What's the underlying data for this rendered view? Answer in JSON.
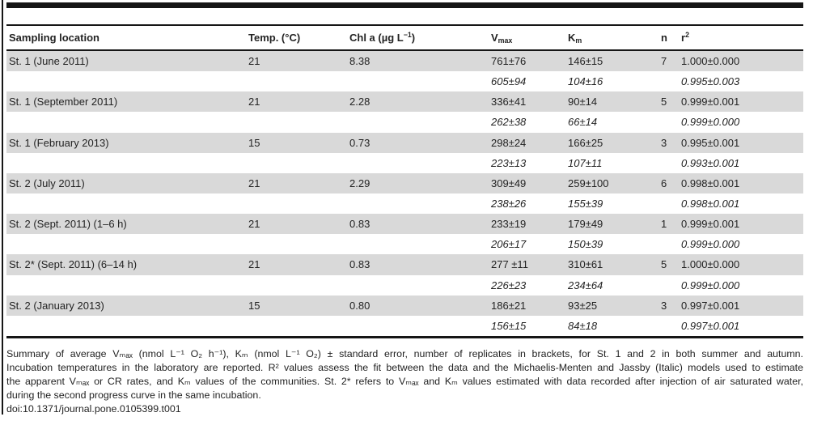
{
  "table": {
    "columns": [
      {
        "id": "sampling-location",
        "text": "Sampling location"
      },
      {
        "id": "temp",
        "text": "Temp. (°C)"
      },
      {
        "id": "chl-a",
        "text": "Chl a (µg L",
        "sup": "−1",
        "after": ")"
      },
      {
        "id": "vmax",
        "text": "V",
        "sub": "max"
      },
      {
        "id": "km",
        "text": "K",
        "sub": "m"
      },
      {
        "id": "n",
        "text": "n"
      },
      {
        "id": "r2",
        "text": "r",
        "sup": "2"
      }
    ],
    "rows": [
      {
        "shaded": true,
        "italic": false,
        "cells": [
          "St. 1 (June 2011)",
          "21",
          "8.38",
          "761±76",
          "146±15",
          "7",
          "1.000±0.000"
        ]
      },
      {
        "shaded": false,
        "italic": true,
        "cells": [
          "",
          "",
          "",
          "605±94",
          "104±16",
          "",
          "0.995±0.003"
        ]
      },
      {
        "shaded": true,
        "italic": false,
        "cells": [
          "St. 1 (September 2011)",
          "21",
          "2.28",
          "336±41",
          "90±14",
          "5",
          "0.999±0.001"
        ]
      },
      {
        "shaded": false,
        "italic": true,
        "cells": [
          "",
          "",
          "",
          "262±38",
          "66±14",
          "",
          "0.999±0.000"
        ]
      },
      {
        "shaded": true,
        "italic": false,
        "cells": [
          "St. 1 (February 2013)",
          "15",
          "0.73",
          "298±24",
          "166±25",
          "3",
          "0.995±0.001"
        ]
      },
      {
        "shaded": false,
        "italic": true,
        "cells": [
          "",
          "",
          "",
          "223±13",
          "107±11",
          "",
          "0.993±0.001"
        ]
      },
      {
        "shaded": true,
        "italic": false,
        "cells": [
          "St. 2 (July 2011)",
          "21",
          "2.29",
          "309±49",
          "259±100",
          "6",
          "0.998±0.001"
        ]
      },
      {
        "shaded": false,
        "italic": true,
        "cells": [
          "",
          "",
          "",
          "238±26",
          "155±39",
          "",
          "0.998±0.001"
        ]
      },
      {
        "shaded": true,
        "italic": false,
        "cells": [
          "St. 2 (Sept. 2011) (1–6 h)",
          "21",
          "0.83",
          "233±19",
          "179±49",
          "1",
          "0.999±0.001"
        ]
      },
      {
        "shaded": false,
        "italic": true,
        "cells": [
          "",
          "",
          "",
          "206±17",
          "150±39",
          "",
          "0.999±0.000"
        ]
      },
      {
        "shaded": true,
        "italic": false,
        "cells": [
          "St. 2* (Sept. 2011) (6–14 h)",
          "21",
          "0.83",
          "277 ±11",
          "310±61",
          "5",
          "1.000±0.000"
        ]
      },
      {
        "shaded": false,
        "italic": true,
        "cells": [
          "",
          "",
          "",
          "226±23",
          "234±64",
          "",
          "0.999±0.000"
        ]
      },
      {
        "shaded": true,
        "italic": false,
        "cells": [
          "St. 2 (January 2013)",
          "15",
          "0.80",
          "186±21",
          "93±25",
          "3",
          "0.997±0.001"
        ]
      },
      {
        "shaded": false,
        "italic": true,
        "cells": [
          "",
          "",
          "",
          "156±15",
          "84±18",
          "",
          "0.997±0.001"
        ]
      }
    ]
  },
  "footnote": {
    "lines": [
      "Summary of average Vₘₐₓ (nmol L⁻¹ O₂ h⁻¹), Kₘ (nmol L⁻¹ O₂) ± standard error, number of replicates in brackets, for St. 1 and 2 in both summer and autumn.",
      "Incubation temperatures in the laboratory are reported. R² values assess the fit between the data and the Michaelis-Menten and Jassby (Italic) models used to estimate",
      "the apparent Vₘₐₓ or CR rates, and Kₘ values of the communities. St. 2* refers to Vₘₐₓ and Kₘ values estimated with data recorded after injection of air saturated water,",
      "during the second progress curve in the same incubation."
    ],
    "doi": "doi:10.1371/journal.pone.0105399.t001"
  },
  "colors": {
    "stripe": "#d9d9d9",
    "rule": "#161616",
    "text": "#232323"
  }
}
